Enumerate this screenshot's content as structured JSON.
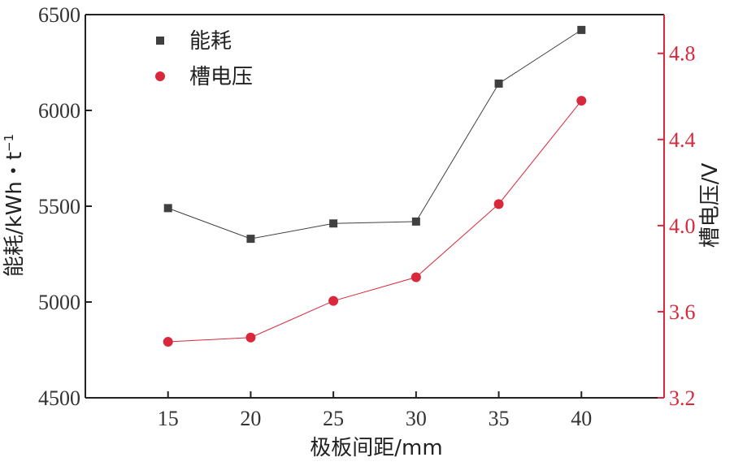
{
  "chart_data": {
    "type": "line",
    "x": [
      15,
      20,
      25,
      30,
      35,
      40
    ],
    "xlabel": "极板间距/mm",
    "ylabel_left": "能耗/kWh・t",
    "ylabel_left_sup": "−1",
    "ylabel_right": "槽电压/V",
    "xlim": [
      10,
      45
    ],
    "ylim_left": [
      4500,
      6500
    ],
    "ylim_right": [
      3.2,
      4.98
    ],
    "xticks": [
      15,
      20,
      25,
      30,
      35,
      40
    ],
    "yticks_left": [
      4500,
      5000,
      5500,
      6000,
      6500
    ],
    "yticks_right": [
      3.2,
      3.6,
      4.0,
      4.4,
      4.8
    ],
    "yticks_right_labels": [
      "3.2",
      "3.6",
      "4.0",
      "4.4",
      "4.8"
    ],
    "grid": false,
    "legend_position": "top-left",
    "series": [
      {
        "name": "能耗",
        "axis": "left",
        "marker": "square",
        "color": "#404040",
        "values": [
          5490,
          5330,
          5410,
          5420,
          6140,
          6420
        ]
      },
      {
        "name": "槽电压",
        "axis": "right",
        "marker": "circle",
        "color": "#d9283b",
        "values": [
          3.46,
          3.48,
          3.65,
          3.76,
          4.1,
          4.58
        ]
      }
    ]
  }
}
